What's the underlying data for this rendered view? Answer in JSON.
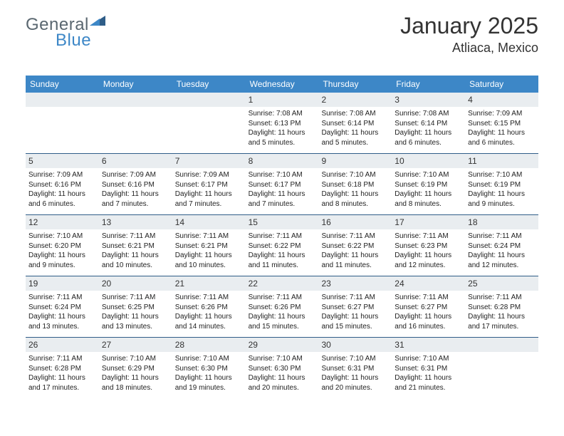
{
  "logo": {
    "main": "General",
    "sub": "Blue"
  },
  "title": "January 2025",
  "location": "Atliaca, Mexico",
  "colors": {
    "header_bg": "#3d87c7",
    "header_text": "#ffffff",
    "daynum_bg": "#e9edf0",
    "divider": "#2f5d88",
    "body_text": "#222222",
    "logo_gray": "#5a6770",
    "logo_blue": "#3d87c7"
  },
  "day_names": [
    "Sunday",
    "Monday",
    "Tuesday",
    "Wednesday",
    "Thursday",
    "Friday",
    "Saturday"
  ],
  "weeks": [
    [
      {
        "n": "",
        "sr": "",
        "ss": "",
        "dl": ""
      },
      {
        "n": "",
        "sr": "",
        "ss": "",
        "dl": ""
      },
      {
        "n": "",
        "sr": "",
        "ss": "",
        "dl": ""
      },
      {
        "n": "1",
        "sr": "Sunrise: 7:08 AM",
        "ss": "Sunset: 6:13 PM",
        "dl": "Daylight: 11 hours and 5 minutes."
      },
      {
        "n": "2",
        "sr": "Sunrise: 7:08 AM",
        "ss": "Sunset: 6:14 PM",
        "dl": "Daylight: 11 hours and 5 minutes."
      },
      {
        "n": "3",
        "sr": "Sunrise: 7:08 AM",
        "ss": "Sunset: 6:14 PM",
        "dl": "Daylight: 11 hours and 6 minutes."
      },
      {
        "n": "4",
        "sr": "Sunrise: 7:09 AM",
        "ss": "Sunset: 6:15 PM",
        "dl": "Daylight: 11 hours and 6 minutes."
      }
    ],
    [
      {
        "n": "5",
        "sr": "Sunrise: 7:09 AM",
        "ss": "Sunset: 6:16 PM",
        "dl": "Daylight: 11 hours and 6 minutes."
      },
      {
        "n": "6",
        "sr": "Sunrise: 7:09 AM",
        "ss": "Sunset: 6:16 PM",
        "dl": "Daylight: 11 hours and 7 minutes."
      },
      {
        "n": "7",
        "sr": "Sunrise: 7:09 AM",
        "ss": "Sunset: 6:17 PM",
        "dl": "Daylight: 11 hours and 7 minutes."
      },
      {
        "n": "8",
        "sr": "Sunrise: 7:10 AM",
        "ss": "Sunset: 6:17 PM",
        "dl": "Daylight: 11 hours and 7 minutes."
      },
      {
        "n": "9",
        "sr": "Sunrise: 7:10 AM",
        "ss": "Sunset: 6:18 PM",
        "dl": "Daylight: 11 hours and 8 minutes."
      },
      {
        "n": "10",
        "sr": "Sunrise: 7:10 AM",
        "ss": "Sunset: 6:19 PM",
        "dl": "Daylight: 11 hours and 8 minutes."
      },
      {
        "n": "11",
        "sr": "Sunrise: 7:10 AM",
        "ss": "Sunset: 6:19 PM",
        "dl": "Daylight: 11 hours and 9 minutes."
      }
    ],
    [
      {
        "n": "12",
        "sr": "Sunrise: 7:10 AM",
        "ss": "Sunset: 6:20 PM",
        "dl": "Daylight: 11 hours and 9 minutes."
      },
      {
        "n": "13",
        "sr": "Sunrise: 7:11 AM",
        "ss": "Sunset: 6:21 PM",
        "dl": "Daylight: 11 hours and 10 minutes."
      },
      {
        "n": "14",
        "sr": "Sunrise: 7:11 AM",
        "ss": "Sunset: 6:21 PM",
        "dl": "Daylight: 11 hours and 10 minutes."
      },
      {
        "n": "15",
        "sr": "Sunrise: 7:11 AM",
        "ss": "Sunset: 6:22 PM",
        "dl": "Daylight: 11 hours and 11 minutes."
      },
      {
        "n": "16",
        "sr": "Sunrise: 7:11 AM",
        "ss": "Sunset: 6:22 PM",
        "dl": "Daylight: 11 hours and 11 minutes."
      },
      {
        "n": "17",
        "sr": "Sunrise: 7:11 AM",
        "ss": "Sunset: 6:23 PM",
        "dl": "Daylight: 11 hours and 12 minutes."
      },
      {
        "n": "18",
        "sr": "Sunrise: 7:11 AM",
        "ss": "Sunset: 6:24 PM",
        "dl": "Daylight: 11 hours and 12 minutes."
      }
    ],
    [
      {
        "n": "19",
        "sr": "Sunrise: 7:11 AM",
        "ss": "Sunset: 6:24 PM",
        "dl": "Daylight: 11 hours and 13 minutes."
      },
      {
        "n": "20",
        "sr": "Sunrise: 7:11 AM",
        "ss": "Sunset: 6:25 PM",
        "dl": "Daylight: 11 hours and 13 minutes."
      },
      {
        "n": "21",
        "sr": "Sunrise: 7:11 AM",
        "ss": "Sunset: 6:26 PM",
        "dl": "Daylight: 11 hours and 14 minutes."
      },
      {
        "n": "22",
        "sr": "Sunrise: 7:11 AM",
        "ss": "Sunset: 6:26 PM",
        "dl": "Daylight: 11 hours and 15 minutes."
      },
      {
        "n": "23",
        "sr": "Sunrise: 7:11 AM",
        "ss": "Sunset: 6:27 PM",
        "dl": "Daylight: 11 hours and 15 minutes."
      },
      {
        "n": "24",
        "sr": "Sunrise: 7:11 AM",
        "ss": "Sunset: 6:27 PM",
        "dl": "Daylight: 11 hours and 16 minutes."
      },
      {
        "n": "25",
        "sr": "Sunrise: 7:11 AM",
        "ss": "Sunset: 6:28 PM",
        "dl": "Daylight: 11 hours and 17 minutes."
      }
    ],
    [
      {
        "n": "26",
        "sr": "Sunrise: 7:11 AM",
        "ss": "Sunset: 6:28 PM",
        "dl": "Daylight: 11 hours and 17 minutes."
      },
      {
        "n": "27",
        "sr": "Sunrise: 7:10 AM",
        "ss": "Sunset: 6:29 PM",
        "dl": "Daylight: 11 hours and 18 minutes."
      },
      {
        "n": "28",
        "sr": "Sunrise: 7:10 AM",
        "ss": "Sunset: 6:30 PM",
        "dl": "Daylight: 11 hours and 19 minutes."
      },
      {
        "n": "29",
        "sr": "Sunrise: 7:10 AM",
        "ss": "Sunset: 6:30 PM",
        "dl": "Daylight: 11 hours and 20 minutes."
      },
      {
        "n": "30",
        "sr": "Sunrise: 7:10 AM",
        "ss": "Sunset: 6:31 PM",
        "dl": "Daylight: 11 hours and 20 minutes."
      },
      {
        "n": "31",
        "sr": "Sunrise: 7:10 AM",
        "ss": "Sunset: 6:31 PM",
        "dl": "Daylight: 11 hours and 21 minutes."
      },
      {
        "n": "",
        "sr": "",
        "ss": "",
        "dl": ""
      }
    ]
  ]
}
